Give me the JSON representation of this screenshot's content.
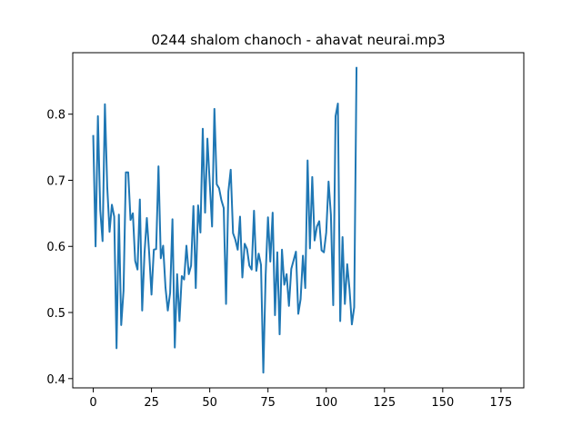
{
  "chart_data": {
    "type": "line",
    "title": "0244 shalom chanoch - ahavat neurai.mp3",
    "xlabel": "",
    "ylabel": "",
    "xlim": [
      -8.8,
      184.8
    ],
    "ylim": [
      0.386,
      0.893
    ],
    "grid": false,
    "line_color": "#1f77b4",
    "xticks": [
      0,
      25,
      50,
      75,
      100,
      125,
      150,
      175
    ],
    "yticks": [
      0.4,
      0.5,
      0.6,
      0.7,
      0.8
    ],
    "ytick_labels": [
      "0.4",
      "0.5",
      "0.6",
      "0.7",
      "0.8"
    ],
    "series": [
      {
        "values": [
          0.767,
          0.6,
          0.797,
          0.655,
          0.608,
          0.815,
          0.69,
          0.622,
          0.663,
          0.645,
          0.446,
          0.648,
          0.481,
          0.533,
          0.712,
          0.712,
          0.64,
          0.65,
          0.578,
          0.565,
          0.671,
          0.503,
          0.59,
          0.643,
          0.59,
          0.527,
          0.595,
          0.596,
          0.721,
          0.582,
          0.601,
          0.538,
          0.503,
          0.53,
          0.641,
          0.447,
          0.558,
          0.487,
          0.555,
          0.55,
          0.601,
          0.558,
          0.571,
          0.661,
          0.537,
          0.662,
          0.621,
          0.778,
          0.651,
          0.763,
          0.696,
          0.63,
          0.808,
          0.694,
          0.688,
          0.67,
          0.658,
          0.513,
          0.683,
          0.716,
          0.62,
          0.61,
          0.595,
          0.645,
          0.553,
          0.604,
          0.596,
          0.571,
          0.565,
          0.654,
          0.563,
          0.589,
          0.572,
          0.409,
          0.557,
          0.644,
          0.577,
          0.651,
          0.496,
          0.591,
          0.467,
          0.595,
          0.542,
          0.558,
          0.51,
          0.566,
          0.579,
          0.592,
          0.498,
          0.52,
          0.586,
          0.537,
          0.73,
          0.597,
          0.705,
          0.609,
          0.63,
          0.638,
          0.594,
          0.591,
          0.621,
          0.698,
          0.648,
          0.511,
          0.797,
          0.816,
          0.487,
          0.614,
          0.513,
          0.573,
          0.535,
          0.482,
          0.508,
          0.87
        ]
      }
    ]
  }
}
